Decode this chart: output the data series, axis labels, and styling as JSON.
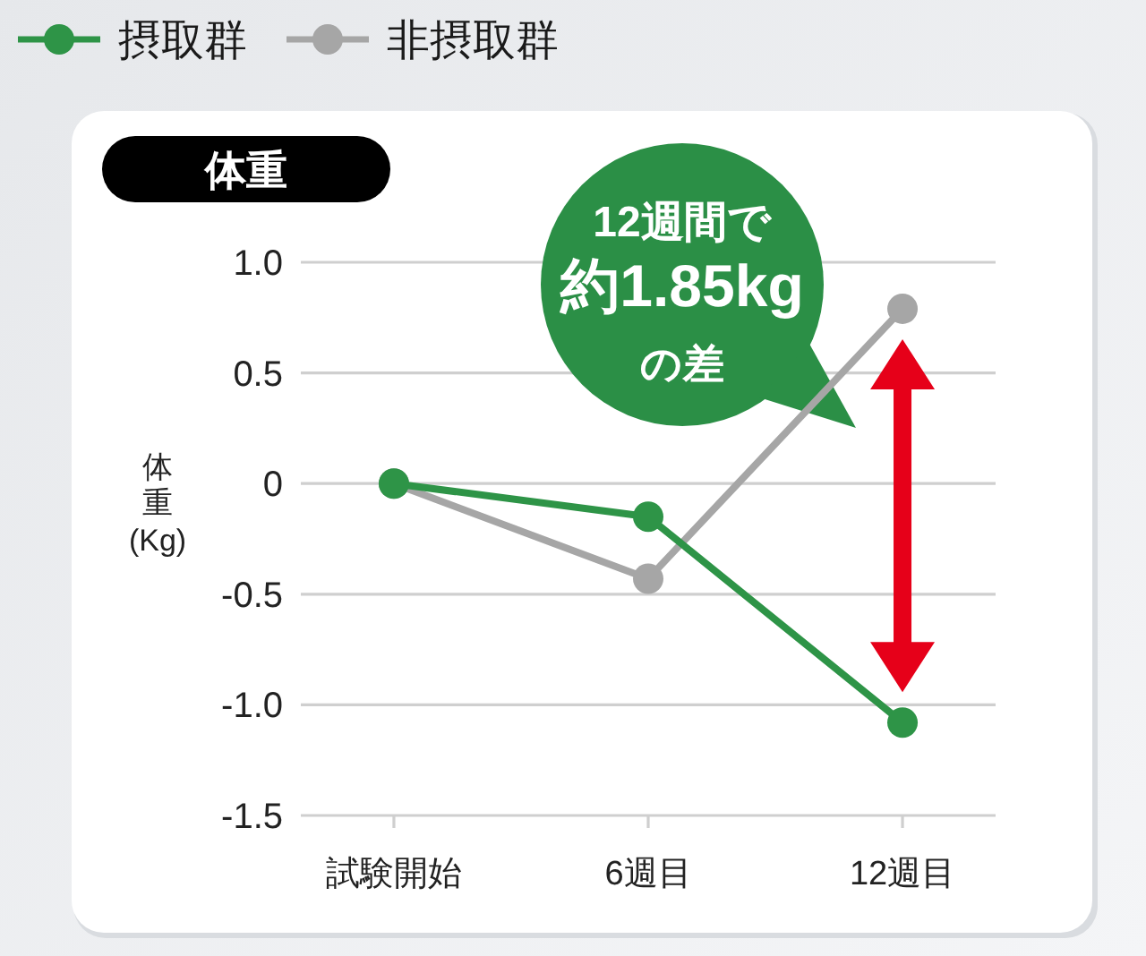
{
  "chart_data": {
    "type": "line",
    "title": "体重",
    "ylabel": "体重(Kg)",
    "categories": [
      "試験開始",
      "6週目",
      "12週目"
    ],
    "series": [
      {
        "name": "摂取群",
        "color": "#2e9447",
        "values": [
          0,
          -0.15,
          -1.08
        ]
      },
      {
        "name": "非摂取群",
        "color": "#a6a6a6",
        "values": [
          0,
          -0.43,
          0.79
        ]
      }
    ],
    "ylim": [
      -1.5,
      1
    ],
    "yticks": [
      {
        "value": 1,
        "label": "1.0"
      },
      0.5,
      0,
      -0.5,
      {
        "value": -1,
        "label": "-1.0"
      },
      -1.5
    ],
    "grid": "y",
    "legend": "top left",
    "marker": "circle",
    "line_style": "solid",
    "annotations": [
      "12週間で",
      "約1.85kg",
      "の差"
    ]
  }
}
